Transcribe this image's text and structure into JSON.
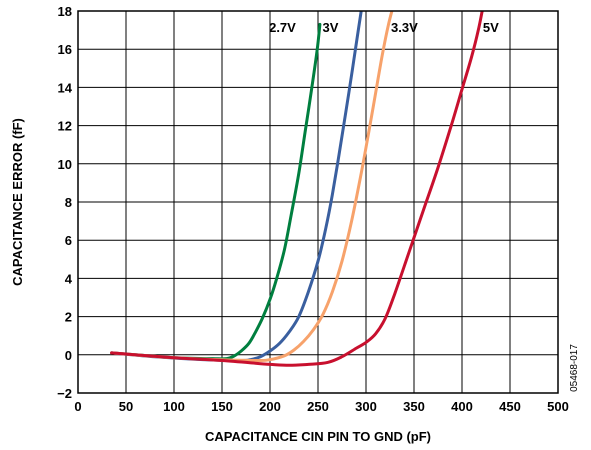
{
  "chart_data": {
    "type": "line",
    "title": "",
    "xlabel": "CAPACITANCE CIN PIN TO GND (pF)",
    "ylabel": "CAPACITANCE ERROR (fF)",
    "xlim": [
      0,
      500
    ],
    "ylim": [
      -2,
      18
    ],
    "xticks": [
      0,
      50,
      100,
      150,
      200,
      250,
      300,
      350,
      400,
      450,
      500
    ],
    "yticks": [
      -2,
      0,
      2,
      4,
      6,
      8,
      10,
      12,
      14,
      16,
      18
    ],
    "ytick_labels": [
      "−2",
      "0",
      "2",
      "4",
      "6",
      "8",
      "10",
      "12",
      "14",
      "16",
      "18"
    ],
    "grid": true,
    "annotation": "05468-017",
    "series": [
      {
        "name": "2.7V",
        "color": "#007f3f",
        "x": [
          35,
          60,
          100,
          140,
          155,
          163,
          170,
          178,
          185,
          192,
          200,
          207,
          215,
          222,
          230,
          237,
          243,
          249,
          252
        ],
        "y": [
          0.1,
          0.0,
          -0.15,
          -0.2,
          -0.2,
          -0.05,
          0.2,
          0.6,
          1.2,
          1.9,
          2.9,
          4.0,
          5.5,
          7.3,
          9.5,
          11.8,
          13.8,
          15.9,
          17.3
        ]
      },
      {
        "name": "3V",
        "color": "#3a5f9f",
        "x": [
          35,
          80,
          130,
          170,
          180,
          190,
          200,
          210,
          220,
          230,
          240,
          250,
          258,
          265,
          272,
          279,
          286,
          292,
          295
        ],
        "y": [
          0.1,
          -0.1,
          -0.25,
          -0.3,
          -0.25,
          -0.1,
          0.2,
          0.6,
          1.2,
          2.0,
          3.3,
          4.9,
          6.6,
          8.4,
          10.5,
          12.7,
          15.0,
          17.0,
          18.0
        ]
      },
      {
        "name": "3.3V",
        "color": "#f7a26b",
        "x": [
          35,
          100,
          180,
          200,
          215,
          225,
          235,
          245,
          255,
          265,
          275,
          285,
          295,
          303,
          310,
          317,
          323,
          328
        ],
        "y": [
          0.1,
          -0.15,
          -0.3,
          -0.25,
          -0.05,
          0.25,
          0.7,
          1.3,
          2.1,
          3.3,
          4.9,
          7.0,
          9.5,
          11.7,
          13.7,
          15.7,
          17.2,
          18.2
        ]
      },
      {
        "name": "5V",
        "color": "#c8102e",
        "x": [
          35,
          100,
          150,
          200,
          220,
          240,
          260,
          275,
          290,
          300,
          310,
          320,
          330,
          345,
          360,
          375,
          390,
          400,
          410,
          417,
          421
        ],
        "y": [
          0.1,
          -0.15,
          -0.3,
          -0.5,
          -0.55,
          -0.5,
          -0.4,
          -0.1,
          0.35,
          0.65,
          1.1,
          1.9,
          3.2,
          5.4,
          7.6,
          9.8,
          12.2,
          13.9,
          15.6,
          17.0,
          18.0
        ]
      }
    ],
    "series_labels": [
      {
        "text": "2.7V",
        "x": 213,
        "y": 16.9
      },
      {
        "text": "3V",
        "x": 263,
        "y": 16.9
      },
      {
        "text": "3.3V",
        "x": 340,
        "y": 16.9
      },
      {
        "text": "5V",
        "x": 430,
        "y": 16.9
      }
    ]
  }
}
